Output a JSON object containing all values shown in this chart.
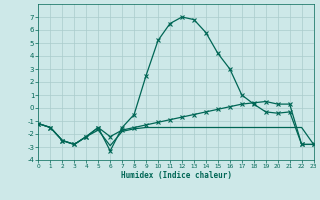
{
  "background_color": "#cde8e8",
  "grid_color": "#aacccc",
  "line_color": "#006655",
  "x_label": "Humidex (Indice chaleur)",
  "ylim": [
    -4,
    8
  ],
  "xlim": [
    0,
    23
  ],
  "yticks": [
    -4,
    -3,
    -2,
    -1,
    0,
    1,
    2,
    3,
    4,
    5,
    6,
    7
  ],
  "xticks": [
    0,
    1,
    2,
    3,
    4,
    5,
    6,
    7,
    8,
    9,
    10,
    11,
    12,
    13,
    14,
    15,
    16,
    17,
    18,
    19,
    20,
    21,
    22,
    23
  ],
  "line1_x": [
    0,
    1,
    2,
    3,
    4,
    5,
    6,
    7,
    8,
    9,
    10,
    11,
    12,
    13,
    14,
    15,
    16,
    17,
    18,
    19,
    20,
    21,
    22,
    23
  ],
  "line1_y": [
    -1.2,
    -1.5,
    -2.5,
    -2.8,
    -2.2,
    -1.5,
    -3.3,
    -1.5,
    -0.5,
    2.5,
    5.2,
    6.5,
    7.0,
    6.8,
    5.8,
    4.2,
    3.0,
    1.0,
    0.3,
    -0.3,
    -0.4,
    -0.3,
    -2.8,
    -2.8
  ],
  "line2_x": [
    0,
    1,
    2,
    3,
    4,
    5,
    6,
    7,
    8,
    9,
    10,
    11,
    12,
    13,
    14,
    15,
    16,
    17,
    18,
    19,
    20,
    21,
    22,
    23
  ],
  "line2_y": [
    -1.2,
    -1.5,
    -2.5,
    -2.8,
    -2.2,
    -1.5,
    -2.2,
    -1.7,
    -1.5,
    -1.3,
    -1.1,
    -0.9,
    -0.7,
    -0.5,
    -0.3,
    -0.1,
    0.1,
    0.3,
    0.4,
    0.5,
    0.3,
    0.3,
    -2.8,
    -2.8
  ],
  "line3_x": [
    0,
    1,
    2,
    3,
    4,
    5,
    6,
    7,
    8,
    9,
    10,
    11,
    12,
    13,
    14,
    15,
    16,
    17,
    18,
    19,
    20,
    21,
    22,
    23
  ],
  "line3_y": [
    -1.2,
    -1.5,
    -2.5,
    -2.8,
    -2.2,
    -1.7,
    -2.9,
    -1.8,
    -1.6,
    -1.5,
    -1.5,
    -1.5,
    -1.5,
    -1.5,
    -1.5,
    -1.5,
    -1.5,
    -1.5,
    -1.5,
    -1.5,
    -1.5,
    -1.5,
    -1.5,
    -2.8
  ]
}
